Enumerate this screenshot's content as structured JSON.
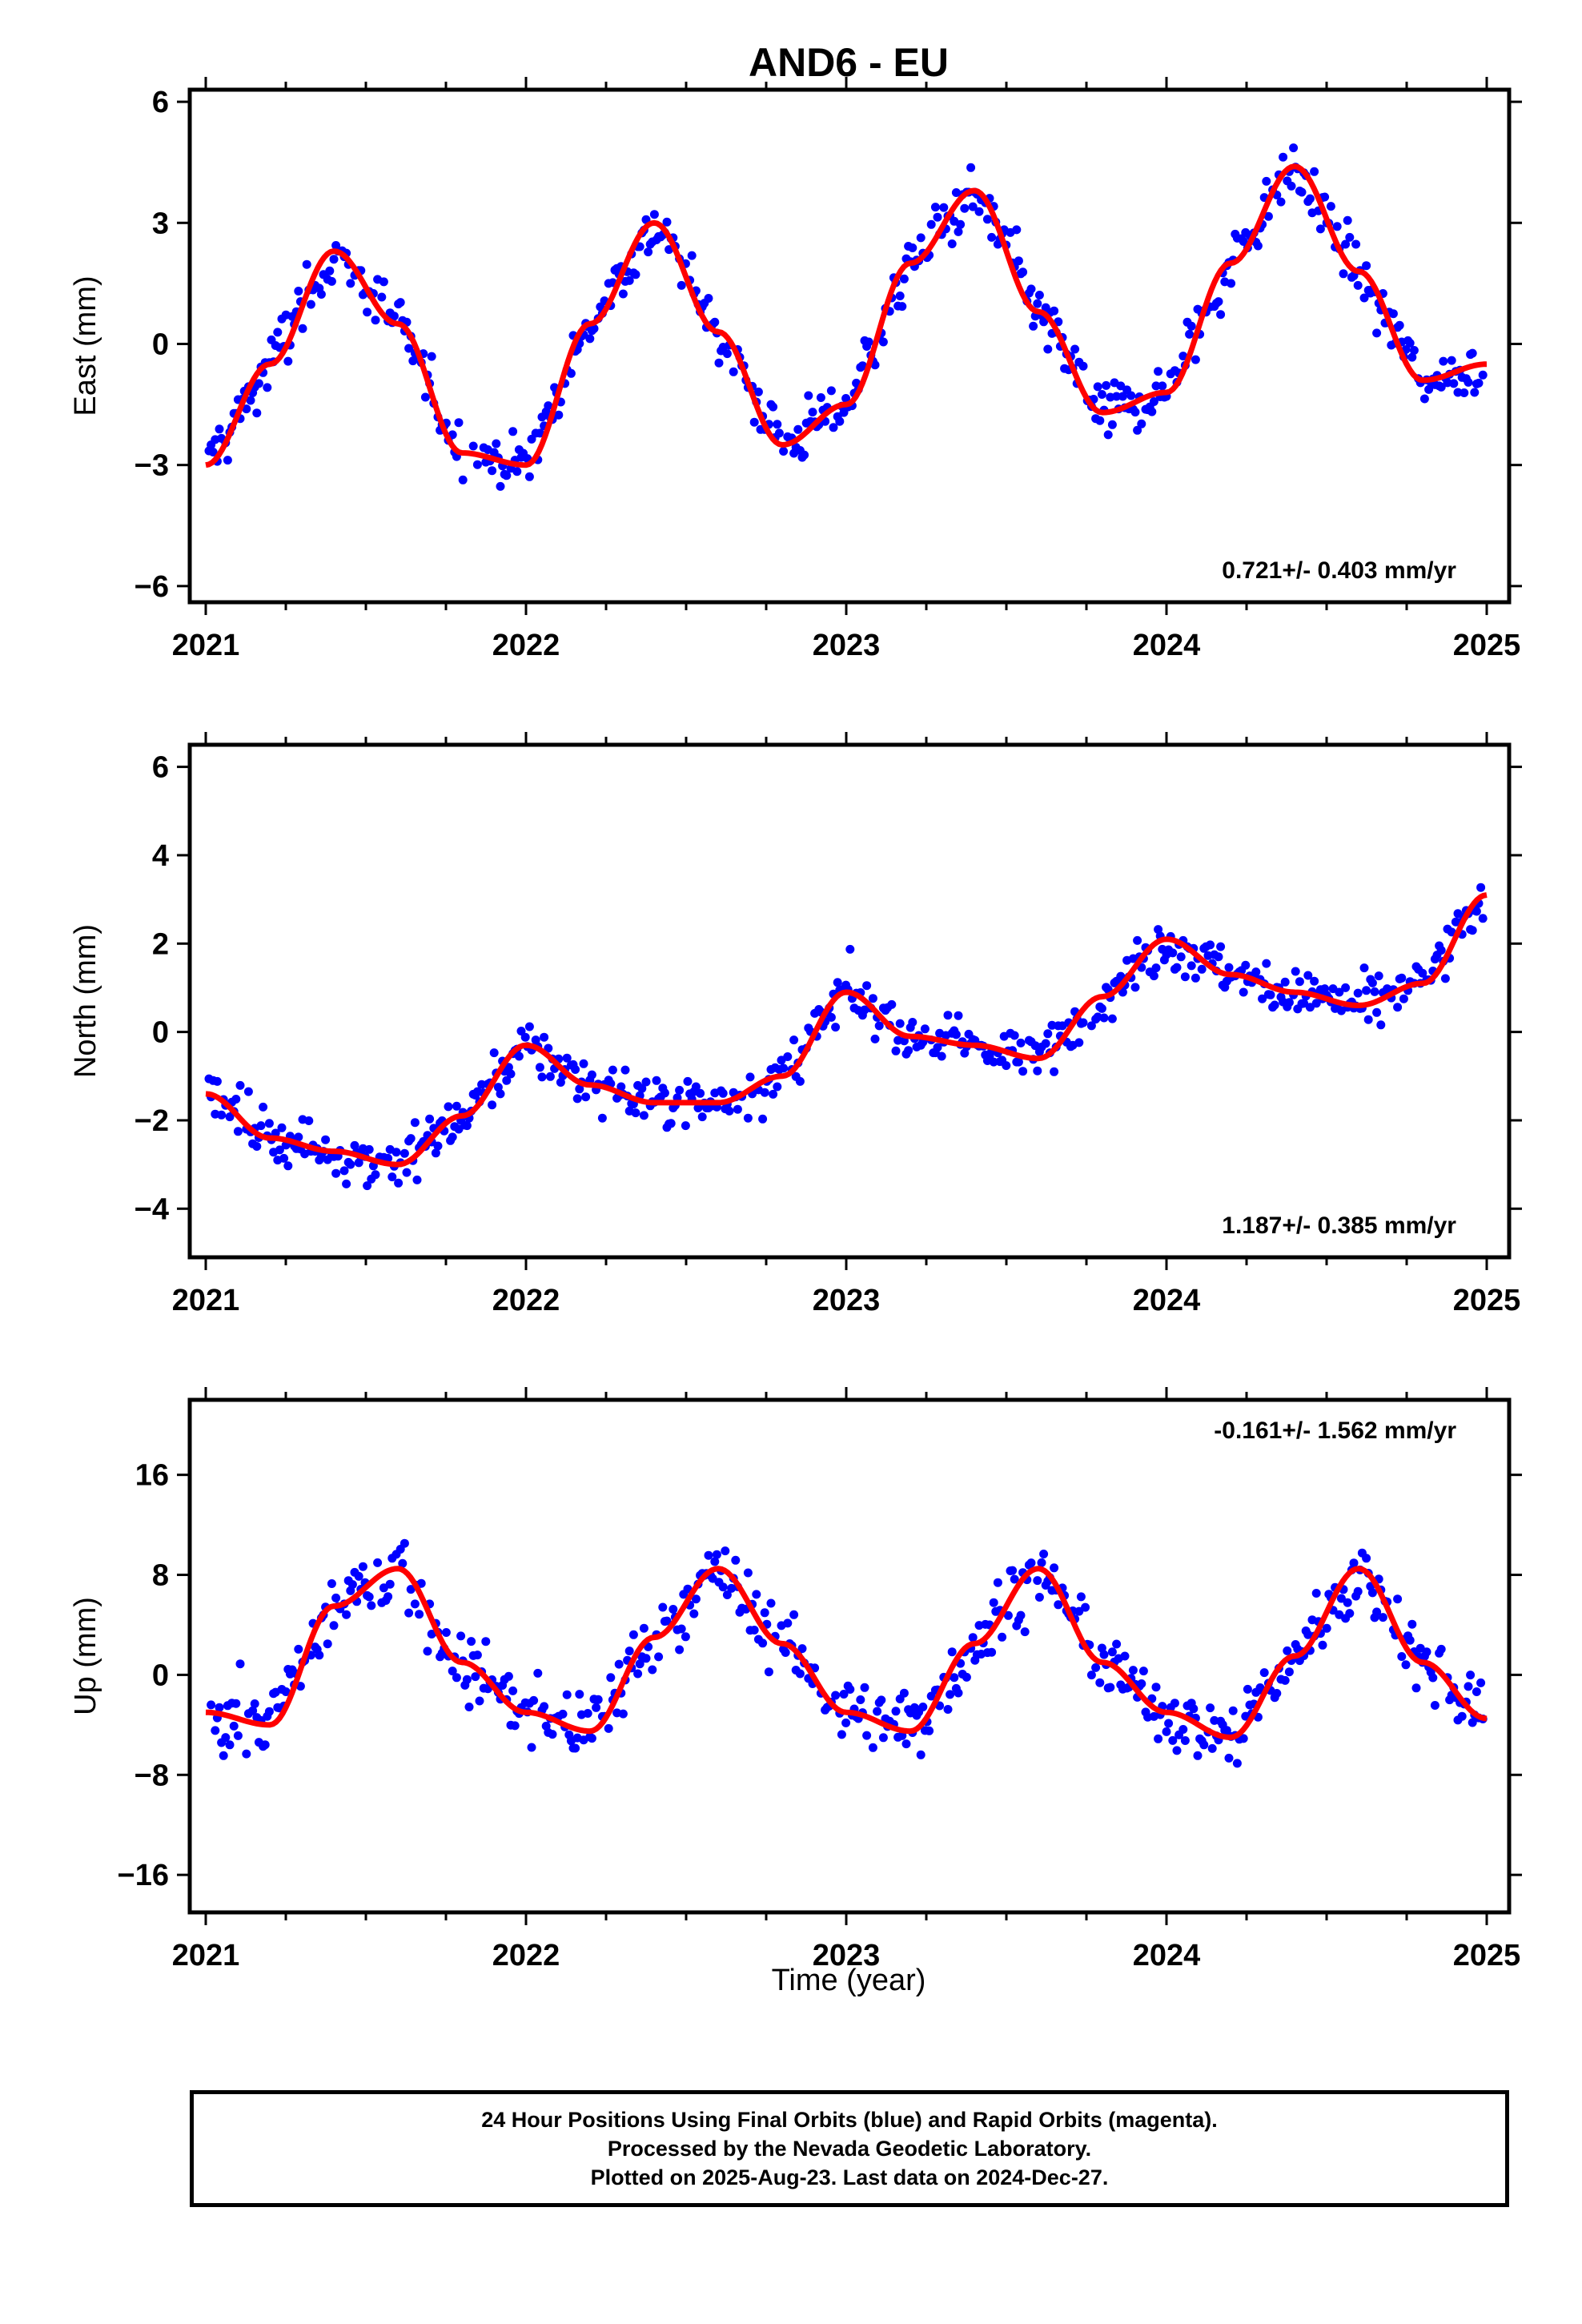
{
  "title": "AND6 - EU",
  "xlabel": "Time (year)",
  "colors": {
    "final_orbits": "#0000ff",
    "fit": "#ff0000",
    "axes": "#000000"
  },
  "caption": [
    "24 Hour Positions Using Final Orbits (blue) and Rapid Orbits (magenta).",
    "Processed by the Nevada Geodetic Laboratory.",
    "Plotted on 2025-Aug-23. Last data on 2024-Dec-27."
  ],
  "chart_data": [
    {
      "type": "scatter",
      "name": "east",
      "ylabel": "East (mm)",
      "rate_label": "0.721+/- 0.403 mm/yr",
      "rate_position": "bottom-right",
      "xlim": [
        2020.95,
        2025.07
      ],
      "ylim": [
        -6.4,
        6.3
      ],
      "xticks": [
        2021,
        2022,
        2023,
        2024,
        2025
      ],
      "yticks": [
        -6,
        -3,
        0,
        3,
        6
      ],
      "ytick_labels": [
        "−6",
        "−3",
        "0",
        "3",
        "6"
      ],
      "grid": false,
      "fit": {
        "x": [
          2021.0,
          2021.2,
          2021.4,
          2021.6,
          2021.8,
          2022.0,
          2022.2,
          2022.4,
          2022.6,
          2022.8,
          2023.0,
          2023.2,
          2023.4,
          2023.6,
          2023.8,
          2024.0,
          2024.2,
          2024.4,
          2024.6,
          2024.8,
          2025.0
        ],
        "y": [
          -3.0,
          -0.5,
          2.3,
          0.5,
          -2.7,
          -3.0,
          0.5,
          3.0,
          0.3,
          -2.5,
          -1.5,
          2.0,
          3.8,
          0.8,
          -1.7,
          -1.2,
          2.0,
          4.4,
          1.8,
          -0.9,
          -0.5
        ]
      },
      "series": [
        {
          "name": "final_orbits",
          "x": [],
          "y": []
        }
      ]
    },
    {
      "type": "scatter",
      "name": "north",
      "ylabel": "North (mm)",
      "rate_label": "1.187+/- 0.385 mm/yr",
      "rate_position": "bottom-right",
      "xlim": [
        2020.95,
        2025.07
      ],
      "ylim": [
        -5.1,
        6.5
      ],
      "xticks": [
        2021,
        2022,
        2023,
        2024,
        2025
      ],
      "yticks": [
        -4,
        -2,
        0,
        2,
        4,
        6
      ],
      "ytick_labels": [
        "−4",
        "−2",
        "0",
        "2",
        "4",
        "6"
      ],
      "grid": false,
      "fit": {
        "x": [
          2021.0,
          2021.2,
          2021.4,
          2021.6,
          2021.8,
          2022.0,
          2022.2,
          2022.4,
          2022.6,
          2022.8,
          2023.0,
          2023.2,
          2023.4,
          2023.6,
          2023.8,
          2024.0,
          2024.2,
          2024.4,
          2024.6,
          2024.8,
          2025.0
        ],
        "y": [
          -1.4,
          -2.4,
          -2.7,
          -3.0,
          -1.9,
          -0.3,
          -1.2,
          -1.6,
          -1.6,
          -1.0,
          0.9,
          -0.1,
          -0.3,
          -0.6,
          0.8,
          2.1,
          1.3,
          0.9,
          0.6,
          1.1,
          3.1
        ]
      },
      "series": [
        {
          "name": "final_orbits",
          "x": [],
          "y": []
        }
      ]
    },
    {
      "type": "scatter",
      "name": "up",
      "ylabel": "Up (mm)",
      "rate_label": "-0.161+/- 1.562 mm/yr",
      "rate_position": "top-right",
      "xlim": [
        2020.95,
        2025.07
      ],
      "ylim": [
        -19,
        22
      ],
      "xticks": [
        2021,
        2022,
        2023,
        2024,
        2025
      ],
      "yticks": [
        -16,
        -8,
        0,
        8,
        16
      ],
      "ytick_labels": [
        "−16",
        "−8",
        "0",
        "8",
        "16"
      ],
      "grid": false,
      "fit": {
        "x": [
          2021.0,
          2021.2,
          2021.4,
          2021.6,
          2021.8,
          2022.0,
          2022.2,
          2022.4,
          2022.6,
          2022.8,
          2023.0,
          2023.2,
          2023.4,
          2023.6,
          2023.8,
          2024.0,
          2024.2,
          2024.4,
          2024.6,
          2024.8,
          2025.0
        ],
        "y": [
          -3.0,
          -4.0,
          5.5,
          8.5,
          1.0,
          -3.0,
          -4.5,
          3.0,
          8.5,
          2.5,
          -3.0,
          -4.5,
          2.5,
          8.5,
          1.0,
          -3.0,
          -5.0,
          1.5,
          8.5,
          1.0,
          -3.5
        ]
      },
      "series": [
        {
          "name": "final_orbits",
          "x": [],
          "y": []
        }
      ]
    }
  ]
}
